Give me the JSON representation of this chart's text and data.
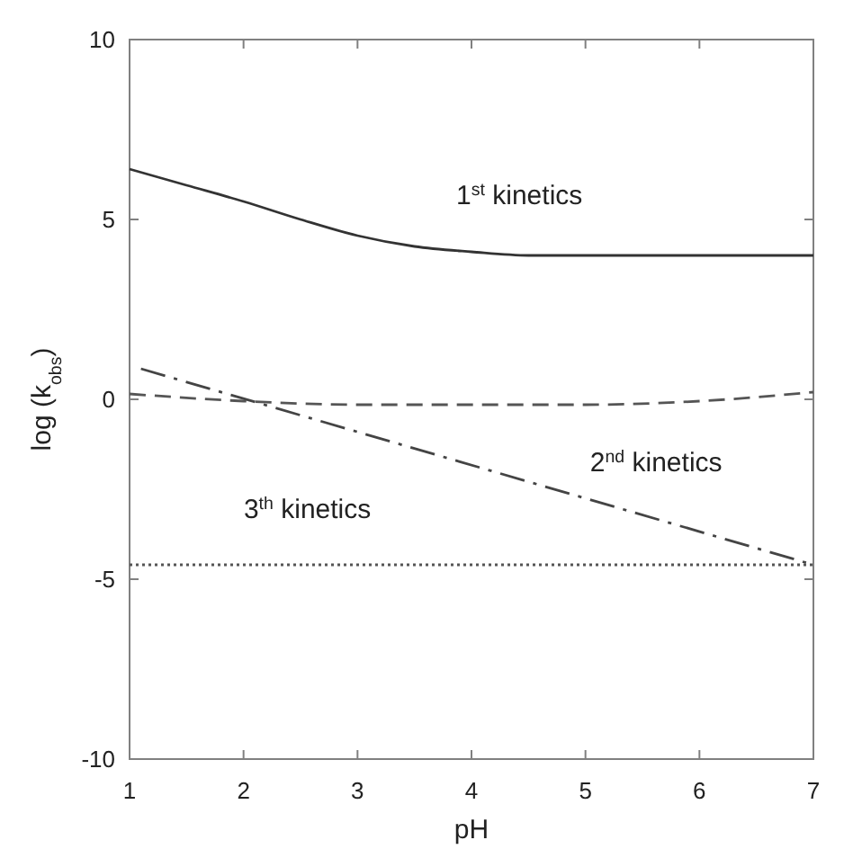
{
  "chart_data": {
    "type": "line",
    "xlabel": "pH",
    "ylabel": "log (k$_{obs}$)",
    "xlim": [
      1,
      7
    ],
    "ylim": [
      -10,
      10
    ],
    "xticks": [
      1,
      2,
      3,
      4,
      5,
      6,
      7
    ],
    "yticks": [
      -10,
      -5,
      0,
      5,
      10
    ],
    "grid": false,
    "marker": "none",
    "series": [
      {
        "name": "1$^{st}$ kinetics",
        "color": "#333333",
        "line_style": "solid",
        "x": [
          1,
          1.5,
          2,
          2.5,
          3,
          3.5,
          4,
          4.5,
          5,
          6,
          7
        ],
        "values": [
          6.4,
          5.95,
          5.5,
          5.0,
          4.55,
          4.25,
          4.1,
          4.0,
          4.0,
          4.0,
          4.0
        ]
      },
      {
        "name": "2$^{nd}$ kinetics",
        "color": "#555555",
        "line_style": "dashed",
        "x": [
          1,
          2,
          3,
          4,
          5,
          6,
          7
        ],
        "values": [
          0.15,
          -0.05,
          -0.15,
          -0.15,
          -0.15,
          -0.05,
          0.2
        ]
      },
      {
        "color": "#444444",
        "line_style": "dashdot",
        "x": [
          1.1,
          7
        ],
        "values": [
          0.85,
          -4.6
        ]
      },
      {
        "name": "3$^{th}$ kinetics",
        "color": "#555555",
        "line_style": "dotted",
        "x": [
          1,
          7
        ],
        "values": [
          -4.6,
          -4.6
        ]
      }
    ]
  }
}
